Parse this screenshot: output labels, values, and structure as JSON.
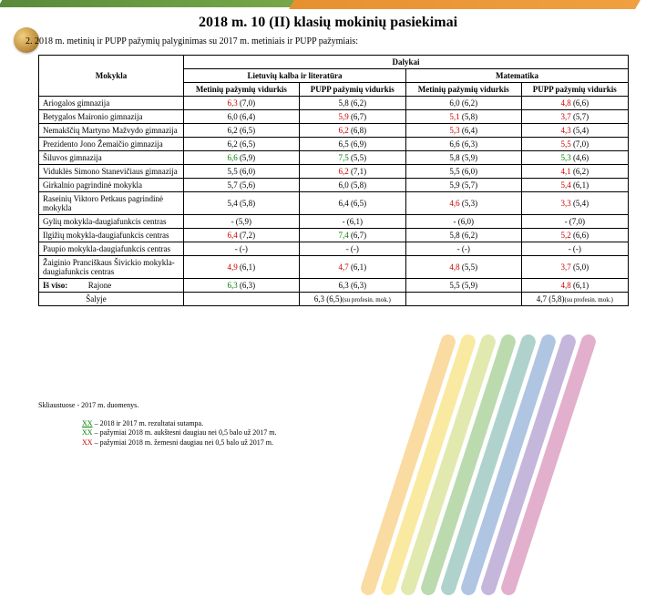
{
  "title": "2018 m. 10 (II) klasių mokinių pasiekimai",
  "subtitle": "2. 2018 m. metinių ir PUPP pažymių palyginimas su 2017 m. metiniais ir PUPP pažymiais:",
  "headers": {
    "mokykla": "Mokykla",
    "dalykai": "Dalykai",
    "lietuviu": "Lietuvių kalba ir literatūra",
    "matematika": "Matematika",
    "metiniu": "Metinių pažymių vidurkis",
    "pupp": "PUPP pažymių vidurkis"
  },
  "rows": [
    {
      "name": "Ariogalos gimnazija",
      "c1_a": "6,3",
      "c1_b": "(7,0)",
      "c1_cls": "red",
      "c2": "5,8 (6,2)",
      "c3": "6,0 (6,2)",
      "c4_a": "4,8",
      "c4_b": "(6,6)",
      "c4_cls": "red"
    },
    {
      "name": "Betygalos Maironio gimnazija",
      "c1": "6,0 (6,4)",
      "c2_a": "5,9",
      "c2_b": "(6,7)",
      "c2_cls": "red",
      "c3_a": "5,1",
      "c3_b": "(5,8)",
      "c3_cls": "red",
      "c4_a": "3,7",
      "c4_b": "(5,7)",
      "c4_cls": "red"
    },
    {
      "name": "Nemakščių Martyno Mažvydo gimnazija",
      "c1": "6,2 (6,5)",
      "c2_a": "6,2",
      "c2_b": "(6,8)",
      "c2_cls": "red",
      "c3_a": "5,3",
      "c3_b": "(6,4)",
      "c3_cls": "red",
      "c4_a": "4,3",
      "c4_b": "(5,4)",
      "c4_cls": "red"
    },
    {
      "name": "Prezidento Jono Žemaičio gimnazija",
      "c1": "6,2 (6,5)",
      "c2_a": "6,5",
      "c2_b": "(6,9)",
      "c2_cls": "",
      "c3": "6,6 (6,3)",
      "c4_a": "5,5",
      "c4_b": "(7,0)",
      "c4_cls": "red"
    },
    {
      "name": "Šiluvos gimnazija",
      "c1_a": "6,6",
      "c1_b": "(5,9)",
      "c1_cls": "green",
      "c2_a": "7,5",
      "c2_b": "(5,5)",
      "c2_cls": "green",
      "c3": "5,8 (5,9)",
      "c4_a": "5,3",
      "c4_b": "(4,6)",
      "c4_cls": "green"
    },
    {
      "name": "Viduklės Simono Stanevičiaus gimnazija",
      "c1": "5,5 (6,0)",
      "c2_a": "6,2",
      "c2_b": "(7,1)",
      "c2_cls": "red",
      "c3": "5,5 (6,0)",
      "c4_a": "4,1",
      "c4_b": "(6,2)",
      "c4_cls": "red"
    },
    {
      "name": "Girkalnio pagrindinė mokykla",
      "c1": "5,7 (5,6)",
      "c2_a": "6,0",
      "c2_b": "(5,8)",
      "c2_cls": "",
      "c3": "5,9 (5,7)",
      "c4_a": "5,4",
      "c4_b": "(6,1)",
      "c4_cls": "red"
    },
    {
      "name": "Raseinių Viktoro Petkaus pagrindinė mokykla",
      "c1": "5,4 (5,8)",
      "c2_a": "6,4",
      "c2_b": "(6,5)",
      "c2_cls": "",
      "c3_a": "4,6",
      "c3_b": "(5,3)",
      "c3_cls": "red",
      "c4_a": "3,3",
      "c4_b": "(5,4)",
      "c4_cls": "red"
    },
    {
      "name": "Gylių mokykla-daugiafunkcis centras",
      "c1": "- (5,9)",
      "c2": "-  (6,1)",
      "c3": "-  (6,0)",
      "c4": "- (7,0)"
    },
    {
      "name": "Ilgižių mokykla-daugiafunkcis centras",
      "c1_a": "6,4",
      "c1_b": "(7,2)",
      "c1_cls": "red",
      "c2_a": "7,4",
      "c2_b": "(6,7)",
      "c2_cls": "green",
      "c3": "5,8 (6,2)",
      "c4_a": "5,2",
      "c4_b": "(6,6)",
      "c4_cls": "red"
    },
    {
      "name": "Paupio mokykla-daugiafunkcis centras",
      "c1": "- (-)",
      "c2": "- (-)",
      "c3": "- (-)",
      "c4": "- (-)"
    },
    {
      "name": "Žaiginio Pranciškaus Šivickio mokykla-daugiafunkcis centras",
      "c1_a": "4,9",
      "c1_b": "(6,1)",
      "c1_cls": "red",
      "c2_a": "4,7",
      "c2_b": "(6,1)",
      "c2_cls": "red",
      "c3_a": "4,8",
      "c3_b": "(5,5)",
      "c3_cls": "red",
      "c4_a": "3,7",
      "c4_b": "(5,0)",
      "c4_cls": "red"
    }
  ],
  "totals": {
    "label": "Iš viso:",
    "rajone": "Rajone",
    "salyje": "Šalyje",
    "r1_a": "6,3",
    "r1_b": "(6,3)",
    "r1_cls": "green",
    "r2": "6,3 (6,3)",
    "r3": "5,5 (5,9)",
    "r4_a": "4,8",
    "r4_b": "(6,1)",
    "r4_cls": "red",
    "s2a": "6,3 (6,5)",
    "s2b": "(su profesin. mok.)",
    "s4a": "4,7 (5,8)",
    "s4b": "(su profesin. mok.)"
  },
  "footnote": "Skliaustuose -  2017 m. duomenys.",
  "legend": {
    "l1_tag": "XX",
    "l1_txt": " – 2018 ir 2017 m. rezultatai sutampa.",
    "l2_tag": "XX",
    "l2_txt": " – pažymiai 2018 m. aukštesni daugiau nei 0,5 balo už 2017 m.",
    "l3_tag": "XX",
    "l3_txt": " – pažymiai 2018 m. žemesni daugiau nei 0,5 balo už 2017 m."
  },
  "stripe_colors": [
    "#f4b030",
    "#f4d030",
    "#c0d050",
    "#6ab050",
    "#50a090",
    "#5080c0",
    "#8060b0",
    "#c05090"
  ]
}
